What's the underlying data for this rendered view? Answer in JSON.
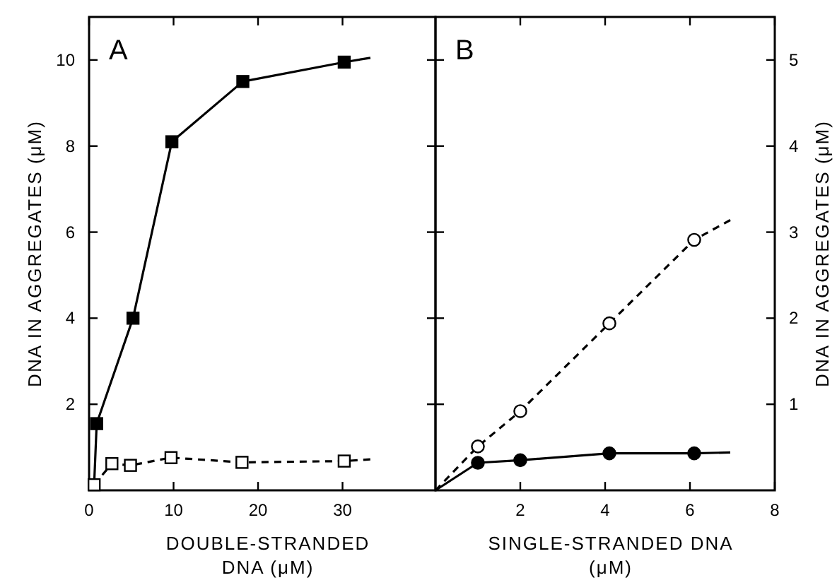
{
  "chart_data": [
    {
      "type": "scatter",
      "title": "A",
      "xlabel": "DOUBLE-STRANDED\nDNA (μM)",
      "ylabel": "DNA IN AGGREGATES (μM)",
      "xlim": [
        0,
        41
      ],
      "xticks": [
        0,
        10,
        20,
        30
      ],
      "ylim": [
        0,
        11
      ],
      "yticks": [
        2,
        4,
        6,
        8,
        10
      ],
      "series": [
        {
          "type": "line",
          "color": "#000000",
          "line_style": "solid",
          "marker": "none",
          "x": [
            0.6,
            0.9,
            5.2,
            9.8,
            18.2,
            30.2,
            33.3
          ],
          "values": [
            0.13,
            1.55,
            4.0,
            8.1,
            9.5,
            9.95,
            10.05
          ]
        },
        {
          "type": "line",
          "color": "#000000",
          "line_style": "dashed",
          "marker": "none",
          "x": [
            0.6,
            2.7,
            4.9,
            9.7,
            18.1,
            30.2,
            33.3
          ],
          "values": [
            0.13,
            0.62,
            0.58,
            0.76,
            0.65,
            0.68,
            0.72
          ]
        },
        {
          "type": "scatter",
          "color": "#000000",
          "marker": "square",
          "x": [
            0.9,
            5.2,
            9.8,
            18.2,
            30.2
          ],
          "values": [
            1.55,
            4.0,
            8.1,
            9.5,
            9.95
          ]
        },
        {
          "type": "scatter",
          "color": "#ffffff",
          "marker": "square",
          "x": [
            0.6,
            2.7,
            4.9,
            9.7,
            18.1,
            30.2
          ],
          "values": [
            0.13,
            0.62,
            0.58,
            0.76,
            0.65,
            0.68
          ]
        }
      ]
    },
    {
      "type": "scatter",
      "title": "B",
      "xlabel": "SINGLE-STRANDED DNA\n(μM)",
      "y2label": "DNA IN AGGREGATES (μM)",
      "xlim": [
        0,
        8
      ],
      "xticks": [
        2,
        4,
        6,
        8
      ],
      "y2lim": [
        0,
        5.5
      ],
      "y2ticks": [
        1,
        2,
        3,
        4,
        5
      ],
      "series": [
        {
          "type": "line",
          "axis": "y2",
          "color": "#000000",
          "line_style": "dashed",
          "marker": "none",
          "x": [
            0,
            1.0,
            2.0,
            4.1,
            6.1,
            6.95
          ],
          "values": [
            0,
            0.51,
            0.92,
            1.94,
            2.91,
            3.14
          ]
        },
        {
          "type": "line",
          "axis": "y2",
          "color": "#000000",
          "line_style": "solid",
          "marker": "none",
          "x": [
            0,
            1.0,
            2.0,
            4.1,
            6.1,
            6.95
          ],
          "values": [
            0,
            0.32,
            0.35,
            0.43,
            0.43,
            0.44
          ]
        },
        {
          "type": "scatter",
          "axis": "y2",
          "color": "#ffffff",
          "marker": "circle",
          "x": [
            1.0,
            2.0,
            4.1,
            6.1
          ],
          "values": [
            0.51,
            0.92,
            1.94,
            2.91
          ]
        },
        {
          "type": "scatter",
          "axis": "y2",
          "color": "#000000",
          "marker": "circle",
          "x": [
            1.0,
            2.0,
            4.1,
            6.1
          ],
          "values": [
            0.32,
            0.35,
            0.43,
            0.43
          ]
        }
      ]
    }
  ]
}
